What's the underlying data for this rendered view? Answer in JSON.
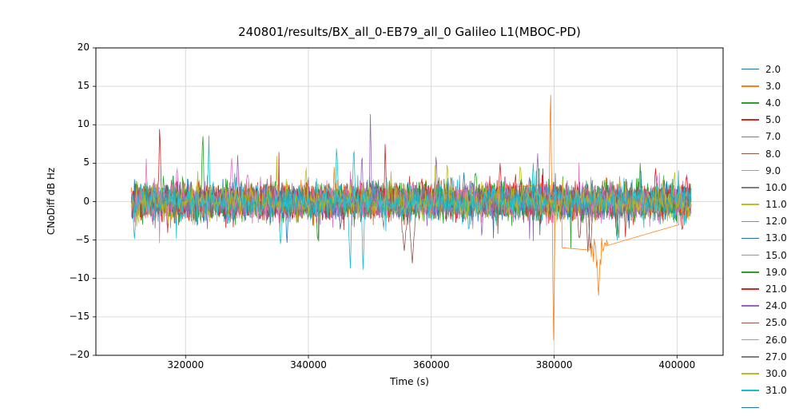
{
  "chart_data": {
    "type": "line",
    "title": "240801/results/BX_all_0-EB79_all_0 Galileo L1(MBOC-PD)",
    "xlabel": "Time (s)",
    "ylabel": "CNoDiff dB Hz",
    "xlim": [
      305400,
      407500
    ],
    "ylim": [
      -20,
      20
    ],
    "x_ticks": [
      320000,
      340000,
      360000,
      380000,
      400000
    ],
    "y_ticks": [
      -20,
      -15,
      -10,
      -5,
      0,
      5,
      10,
      15,
      20
    ],
    "grid": true,
    "legend_position": "right-outside",
    "x_start": 311200,
    "x_end": 402300,
    "sample_step_s": 120,
    "description": "Carrier-to-noise-density difference per Galileo satellite; noisy series centered near 0 dB with typical spread of about ±3 dB and occasional spikes (largest: +16.4 and −19.8 near t=379500, −13 near t=387200, +12.3 near t=350100, +11 near t=315800, +10.2 near t=322800).",
    "series": [
      {
        "name": "2.0",
        "color": "#1f77b4",
        "seed": 11,
        "noise_sd": 0.95,
        "spikes": [
          [
            336500,
            -5.5,
            300
          ]
        ]
      },
      {
        "name": "3.0",
        "color": "#ff7f0e",
        "seed": 12,
        "noise_sd": 1.0,
        "spikes": [
          [
            344200,
            4.5,
            300
          ]
        ]
      },
      {
        "name": "4.0",
        "color": "#2ca02c",
        "seed": 13,
        "noise_sd": 1.2,
        "spikes": [
          [
            322800,
            10.2,
            260
          ],
          [
            341500,
            -6.0,
            300
          ],
          [
            377500,
            5.5,
            260
          ],
          [
            394000,
            5.0,
            260
          ]
        ]
      },
      {
        "name": "5.0",
        "color": "#d62728",
        "seed": 14,
        "noise_sd": 1.2,
        "spikes": [
          [
            315800,
            11.0,
            240
          ],
          [
            317100,
            -4.6,
            260
          ],
          [
            352500,
            8.0,
            240
          ],
          [
            396500,
            4.6,
            260
          ],
          [
            400800,
            -4.4,
            260
          ]
        ]
      },
      {
        "name": "7.0",
        "color": "#9467bd",
        "seed": 15,
        "noise_sd": 1.1,
        "spikes": [
          [
            328500,
            6.5,
            260
          ],
          [
            350100,
            12.3,
            220
          ],
          [
            360800,
            7.0,
            260
          ]
        ]
      },
      {
        "name": "8.0",
        "color": "#8c564b",
        "seed": 16,
        "noise_sd": 1.0,
        "spikes": [
          [
            355600,
            -6.4,
            800
          ],
          [
            356900,
            -8.3,
            600
          ],
          [
            385500,
            -7.0,
            400
          ]
        ]
      },
      {
        "name": "9.0",
        "color": "#e377c2",
        "seed": 17,
        "noise_sd": 1.25,
        "spikes": [
          [
            313600,
            5.6,
            280
          ],
          [
            327500,
            6.1,
            280
          ]
        ]
      },
      {
        "name": "10.0",
        "color": "#7f7f7f",
        "seed": 18,
        "noise_sd": 0.9,
        "spikes": [
          [
            363200,
            3.6,
            280
          ]
        ]
      },
      {
        "name": "11.0",
        "color": "#bcbd22",
        "seed": 19,
        "noise_sd": 1.0,
        "spikes": [
          [
            339600,
            5.0,
            280
          ],
          [
            374500,
            5.6,
            280
          ]
        ]
      },
      {
        "name": "12.0",
        "color": "#17becf",
        "seed": 20,
        "noise_sd": 1.3,
        "spikes": [
          [
            311700,
            -5.4,
            260
          ],
          [
            323800,
            8.6,
            240
          ],
          [
            335500,
            -6.4,
            280
          ],
          [
            344600,
            8.0,
            240
          ],
          [
            346800,
            -10.0,
            280
          ],
          [
            347400,
            7.9,
            240
          ],
          [
            348900,
            -9.7,
            280
          ]
        ]
      },
      {
        "name": "13.0",
        "color": "#1f77b4",
        "seed": 21,
        "noise_sd": 1.1,
        "spikes": [
          [
            345200,
            -4.2,
            280
          ],
          [
            365300,
            4.2,
            280
          ]
        ]
      },
      {
        "name": "15.0",
        "color": "#ff7f0e",
        "seed": 22,
        "noise_sd": 1.1,
        "spikes": [
          [
            379400,
            16.4,
            220
          ],
          [
            379900,
            -19.8,
            240
          ],
          [
            387200,
            -13.0,
            320
          ]
        ],
        "segments": [
          {
            "x0": 311200,
            "x1": 357000,
            "type": "noise",
            "y": 0
          },
          {
            "x0": 357000,
            "x1": 378600,
            "type": "line",
            "y0": 1.0,
            "y1": 2.2
          },
          {
            "x0": 378600,
            "x1": 381300,
            "type": "noise",
            "y": 0
          },
          {
            "x0": 381300,
            "x1": 385800,
            "type": "line",
            "y0": -6.0,
            "y1": -6.3
          },
          {
            "x0": 385800,
            "x1": 388700,
            "type": "noise",
            "y": -6.0
          },
          {
            "x0": 388700,
            "x1": 400300,
            "type": "line",
            "y0": -5.7,
            "y1": -3.0
          },
          {
            "x0": 400300,
            "x1": 402300,
            "type": "noise",
            "y": -0.8
          }
        ]
      },
      {
        "name": "19.0",
        "color": "#2ca02c",
        "seed": 23,
        "noise_sd": 1.2,
        "spikes": [
          [
            367200,
            4.6,
            280
          ],
          [
            390200,
            -5.2,
            280
          ]
        ]
      },
      {
        "name": "21.0",
        "color": "#d62728",
        "seed": 24,
        "noise_sd": 1.1,
        "spikes": [
          [
            371200,
            5.0,
            280
          ],
          [
            391600,
            -4.6,
            280
          ],
          [
            401500,
            4.0,
            260
          ]
        ]
      },
      {
        "name": "24.0",
        "color": "#9467bd",
        "seed": 25,
        "noise_sd": 1.0,
        "spikes": [
          [
            348700,
            7.2,
            260
          ],
          [
            368200,
            -4.4,
            280
          ],
          [
            377300,
            6.8,
            260
          ]
        ]
      },
      {
        "name": "25.0",
        "color": "#8c564b",
        "seed": 26,
        "noise_sd": 0.95,
        "spikes": [
          [
            384100,
            -5.6,
            400
          ],
          [
            385900,
            -7.3,
            360
          ]
        ]
      },
      {
        "name": "26.0",
        "color": "#e377c2",
        "seed": 27,
        "noise_sd": 1.0,
        "spikes": [
          [
            318600,
            5.1,
            280
          ],
          [
            330100,
            4.6,
            280
          ]
        ]
      },
      {
        "name": "27.0",
        "color": "#7f7f7f",
        "seed": 28,
        "noise_sd": 0.9,
        "spikes": [
          [
            352200,
            -4.2,
            280
          ],
          [
            390500,
            -5.0,
            320
          ]
        ]
      },
      {
        "name": "30.0",
        "color": "#bcbd22",
        "seed": 29,
        "noise_sd": 1.0,
        "spikes": [
          [
            362600,
            5.5,
            280
          ],
          [
            399600,
            4.6,
            260
          ]
        ]
      },
      {
        "name": "31.0",
        "color": "#17becf",
        "seed": 30,
        "noise_sd": 1.0,
        "spikes": [
          [
            366100,
            -4.5,
            280
          ],
          [
            376600,
            5.0,
            280
          ]
        ]
      }
    ],
    "legend_extra": [
      {
        "label": "",
        "color": "#1f77b4"
      }
    ]
  }
}
